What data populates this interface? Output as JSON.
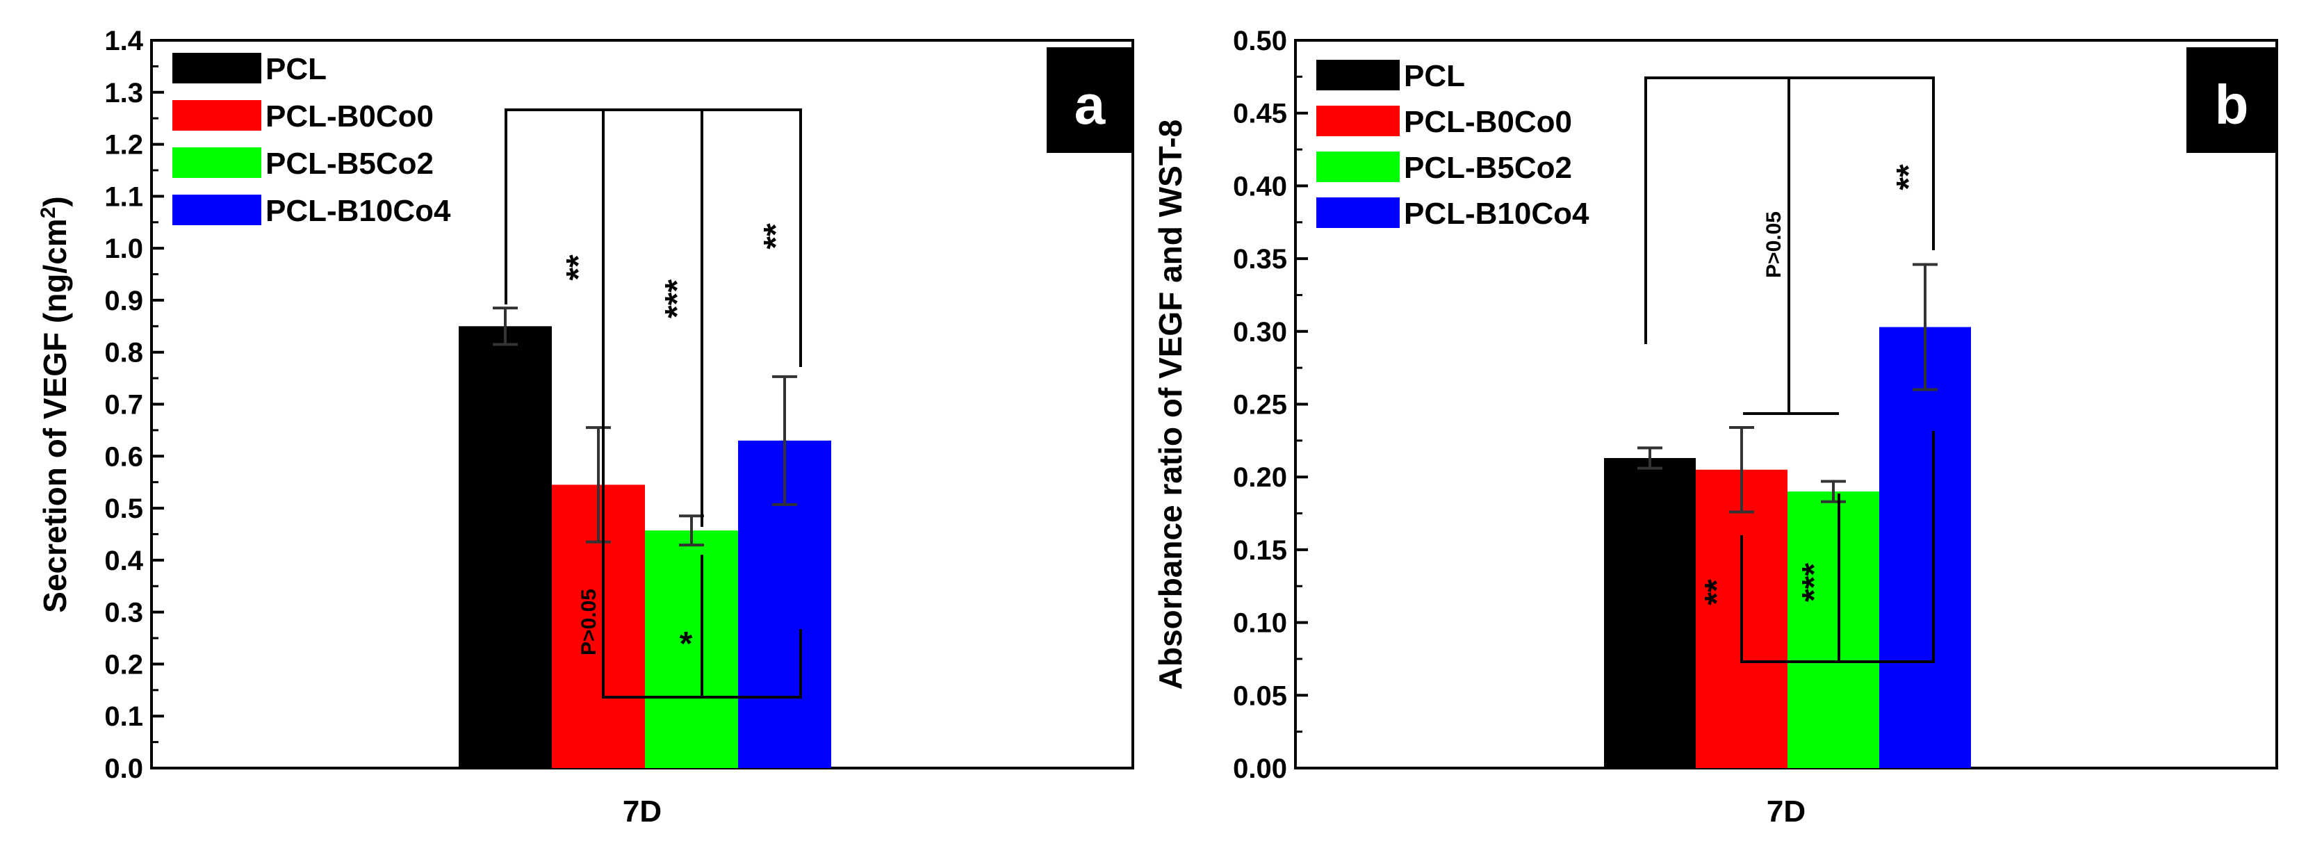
{
  "chart_data": [
    {
      "type": "bar",
      "panel_label": "a",
      "categories": [
        "7D"
      ],
      "series": [
        {
          "name": "PCL",
          "color": "#000000",
          "values": [
            0.85
          ],
          "error": [
            0.035
          ]
        },
        {
          "name": "PCL-B0Co0",
          "color": "#ff0000",
          "values": [
            0.545
          ],
          "error": [
            0.11
          ]
        },
        {
          "name": "PCL-B5Co2",
          "color": "#00ff00",
          "values": [
            0.457
          ],
          "error": [
            0.028
          ]
        },
        {
          "name": "PCL-B10Co4",
          "color": "#0000ff",
          "values": [
            0.63
          ],
          "error": [
            0.123
          ]
        }
      ],
      "ylabel": "Secretion of VEGF (ng/cm",
      "ylabel_sup": "2",
      "ylabel_end": ")",
      "xlabel": "",
      "ylim": [
        0,
        1.4
      ],
      "yticks": [
        "0.0",
        "0.1",
        "0.2",
        "0.3",
        "0.4",
        "0.5",
        "0.6",
        "0.7",
        "0.8",
        "0.9",
        "1.0",
        "1.1",
        "1.2",
        "1.3",
        "1.4"
      ],
      "legend_position": "top-left",
      "annotations": {
        "top": [
          "**",
          "***",
          "**"
        ],
        "bottom": [
          "P>0.05",
          "*"
        ]
      }
    },
    {
      "type": "bar",
      "panel_label": "b",
      "categories": [
        "7D"
      ],
      "series": [
        {
          "name": "PCL",
          "color": "#000000",
          "values": [
            0.213
          ],
          "error": [
            0.007
          ]
        },
        {
          "name": "PCL-B0Co0",
          "color": "#ff0000",
          "values": [
            0.205
          ],
          "error": [
            0.029
          ]
        },
        {
          "name": "PCL-B5Co2",
          "color": "#00ff00",
          "values": [
            0.19
          ],
          "error": [
            0.007
          ]
        },
        {
          "name": "PCL-B10Co4",
          "color": "#0000ff",
          "values": [
            0.303
          ],
          "error": [
            0.043
          ]
        }
      ],
      "ylabel": "Absorbance ratio of VEGF and WST-8",
      "xlabel": "",
      "ylim": [
        0,
        0.5
      ],
      "yticks": [
        "0.00",
        "0.05",
        "0.10",
        "0.15",
        "0.20",
        "0.25",
        "0.30",
        "0.35",
        "0.40",
        "0.45",
        "0.50"
      ],
      "legend_position": "top-left",
      "annotations": {
        "top": [
          "P>0.05",
          "**"
        ],
        "bottom": [
          "**",
          "***"
        ]
      }
    }
  ]
}
